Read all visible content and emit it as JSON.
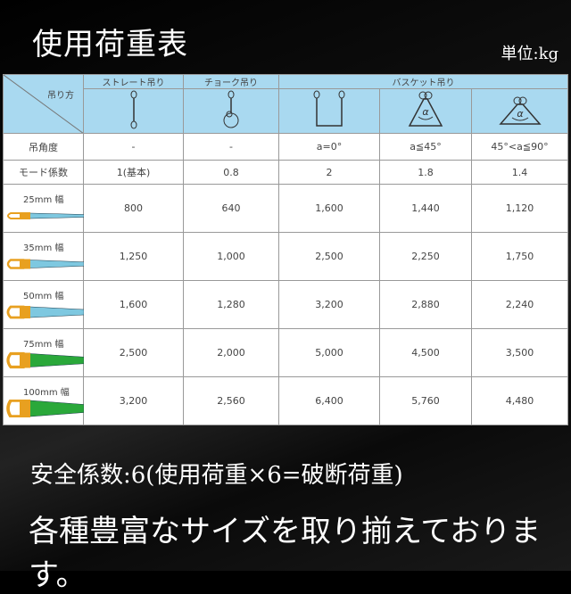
{
  "title": "使用荷重表",
  "unit": "単位:kg",
  "table": {
    "corner_label": "吊り方",
    "methods": [
      "ストレート吊り",
      "チョーク吊り",
      "バスケット吊り"
    ],
    "icons": [
      "straight-sling-icon",
      "choke-sling-icon",
      "basket-vertical-icon",
      "basket-45-icon",
      "basket-90-icon"
    ],
    "angle_label": "吊角度",
    "angles": [
      "-",
      "-",
      "a=0°",
      "a≦45°",
      "45°<a≦90°"
    ],
    "mode_label": "モード係数",
    "modes": [
      "1(基本)",
      "0.8",
      "2",
      "1.8",
      "1.4"
    ],
    "rows": [
      {
        "width": "25mm 幅",
        "color": "#7ec8e0",
        "values": [
          "800",
          "640",
          "1,600",
          "1,440",
          "1,120"
        ]
      },
      {
        "width": "35mm 幅",
        "color": "#7ec8e0",
        "values": [
          "1,250",
          "1,000",
          "2,500",
          "2,250",
          "1,750"
        ]
      },
      {
        "width": "50mm 幅",
        "color": "#7ec8e0",
        "values": [
          "1,600",
          "1,280",
          "3,200",
          "2,880",
          "2,240"
        ]
      },
      {
        "width": "75mm 幅",
        "color": "#2aa83a",
        "values": [
          "2,500",
          "2,000",
          "5,000",
          "4,500",
          "3,500"
        ]
      },
      {
        "width": "100mm 幅",
        "color": "#2aa83a",
        "values": [
          "3,200",
          "2,560",
          "6,400",
          "5,760",
          "4,480"
        ]
      }
    ]
  },
  "footer": {
    "safety": "安全係数:6(使用荷重×6=破断荷重)",
    "tagline": "各種豊富なサイズを取り揃えております。"
  }
}
